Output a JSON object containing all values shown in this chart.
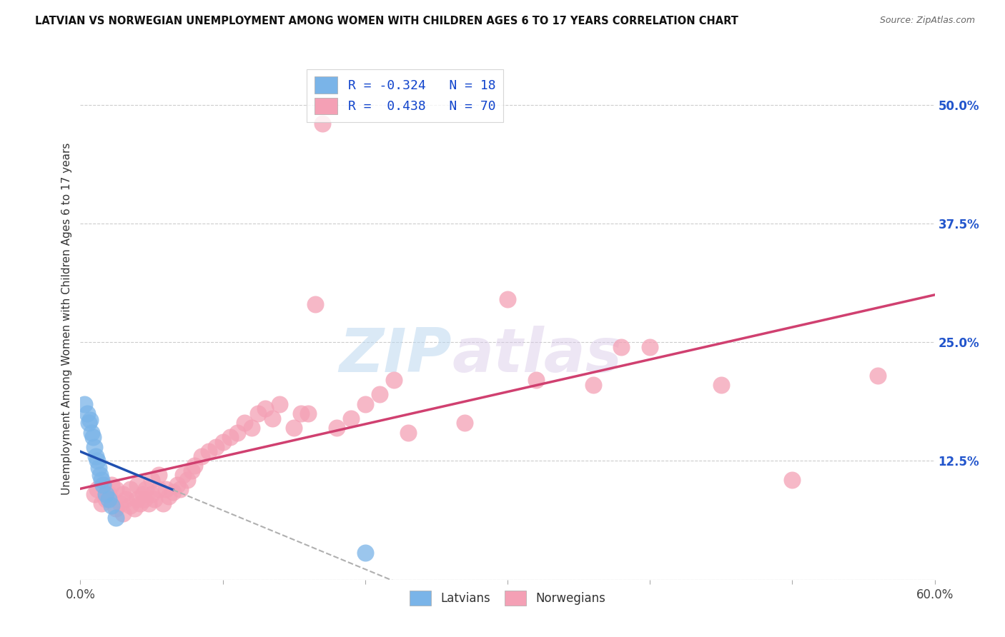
{
  "title": "LATVIAN VS NORWEGIAN UNEMPLOYMENT AMONG WOMEN WITH CHILDREN AGES 6 TO 17 YEARS CORRELATION CHART",
  "source": "Source: ZipAtlas.com",
  "ylabel": "Unemployment Among Women with Children Ages 6 to 17 years",
  "xlim": [
    0.0,
    0.6
  ],
  "ylim": [
    0.0,
    0.55
  ],
  "right_yticks": [
    0.0,
    0.125,
    0.25,
    0.375,
    0.5
  ],
  "right_yticklabels": [
    "",
    "12.5%",
    "25.0%",
    "37.5%",
    "50.0%"
  ],
  "latvian_R": -0.324,
  "latvian_N": 18,
  "norwegian_R": 0.438,
  "norwegian_N": 70,
  "latvian_color": "#7ab4e8",
  "norwegian_color": "#f4a0b5",
  "latvian_line_color": "#2050b0",
  "norwegian_line_color": "#d04070",
  "latvian_x": [
    0.003,
    0.005,
    0.006,
    0.007,
    0.008,
    0.009,
    0.01,
    0.011,
    0.012,
    0.013,
    0.014,
    0.015,
    0.016,
    0.018,
    0.02,
    0.022,
    0.025,
    0.2
  ],
  "latvian_y": [
    0.185,
    0.175,
    0.165,
    0.168,
    0.155,
    0.15,
    0.14,
    0.13,
    0.125,
    0.118,
    0.11,
    0.105,
    0.1,
    0.09,
    0.085,
    0.078,
    0.065,
    0.028
  ],
  "norwegian_x": [
    0.01,
    0.012,
    0.015,
    0.016,
    0.018,
    0.02,
    0.022,
    0.025,
    0.025,
    0.028,
    0.03,
    0.03,
    0.032,
    0.035,
    0.035,
    0.038,
    0.04,
    0.04,
    0.042,
    0.044,
    0.045,
    0.046,
    0.048,
    0.05,
    0.05,
    0.052,
    0.055,
    0.055,
    0.058,
    0.06,
    0.062,
    0.065,
    0.068,
    0.07,
    0.072,
    0.075,
    0.078,
    0.08,
    0.085,
    0.09,
    0.095,
    0.1,
    0.105,
    0.11,
    0.115,
    0.12,
    0.125,
    0.13,
    0.135,
    0.14,
    0.15,
    0.155,
    0.16,
    0.165,
    0.17,
    0.18,
    0.19,
    0.2,
    0.21,
    0.22,
    0.23,
    0.27,
    0.3,
    0.32,
    0.36,
    0.38,
    0.4,
    0.45,
    0.5,
    0.56
  ],
  "norwegian_y": [
    0.09,
    0.095,
    0.08,
    0.1,
    0.085,
    0.09,
    0.1,
    0.075,
    0.095,
    0.08,
    0.07,
    0.09,
    0.085,
    0.078,
    0.095,
    0.075,
    0.085,
    0.1,
    0.08,
    0.09,
    0.085,
    0.095,
    0.08,
    0.09,
    0.105,
    0.085,
    0.095,
    0.11,
    0.08,
    0.095,
    0.088,
    0.092,
    0.1,
    0.095,
    0.11,
    0.105,
    0.115,
    0.12,
    0.13,
    0.135,
    0.14,
    0.145,
    0.15,
    0.155,
    0.165,
    0.16,
    0.175,
    0.18,
    0.17,
    0.185,
    0.16,
    0.175,
    0.175,
    0.29,
    0.48,
    0.16,
    0.17,
    0.185,
    0.195,
    0.21,
    0.155,
    0.165,
    0.295,
    0.21,
    0.205,
    0.245,
    0.245,
    0.205,
    0.105,
    0.215
  ],
  "watermark_zip": "ZIP",
  "watermark_atlas": "atlas",
  "background_color": "#ffffff",
  "grid_color": "#cccccc"
}
